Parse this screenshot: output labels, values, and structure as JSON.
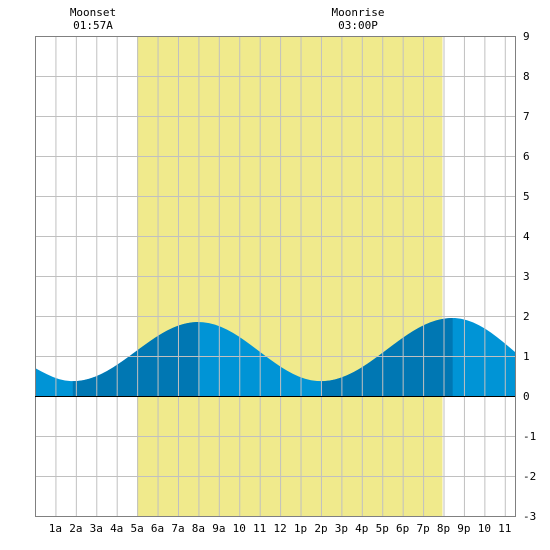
{
  "moon_events": [
    {
      "label": "Moonset",
      "time": "01:57A",
      "hour": 1.95
    },
    {
      "label": "Moonrise",
      "time": "03:00P",
      "hour": 15.0
    }
  ],
  "colors": {
    "background": "#ffffff",
    "daylight": "#f0ea8c",
    "grid": "#c0c0c0",
    "tide_light": "#0094d6",
    "tide_dark": "#0077b3",
    "zero_line": "#000000"
  },
  "chart_data": {
    "type": "area",
    "title": "",
    "xlabel": "",
    "ylabel": "",
    "xlim": [
      0,
      23.5
    ],
    "ylim": [
      -3,
      9
    ],
    "grid": true,
    "x_ticks": [
      {
        "hour": 1,
        "label": "1a"
      },
      {
        "hour": 2,
        "label": "2a"
      },
      {
        "hour": 3,
        "label": "3a"
      },
      {
        "hour": 4,
        "label": "4a"
      },
      {
        "hour": 5,
        "label": "5a"
      },
      {
        "hour": 6,
        "label": "6a"
      },
      {
        "hour": 7,
        "label": "7a"
      },
      {
        "hour": 8,
        "label": "8a"
      },
      {
        "hour": 9,
        "label": "9a"
      },
      {
        "hour": 10,
        "label": "10"
      },
      {
        "hour": 11,
        "label": "11"
      },
      {
        "hour": 12,
        "label": "12"
      },
      {
        "hour": 13,
        "label": "1p"
      },
      {
        "hour": 14,
        "label": "2p"
      },
      {
        "hour": 15,
        "label": "3p"
      },
      {
        "hour": 16,
        "label": "4p"
      },
      {
        "hour": 17,
        "label": "5p"
      },
      {
        "hour": 18,
        "label": "6p"
      },
      {
        "hour": 19,
        "label": "7p"
      },
      {
        "hour": 20,
        "label": "8p"
      },
      {
        "hour": 21,
        "label": "9p"
      },
      {
        "hour": 22,
        "label": "10"
      },
      {
        "hour": 23,
        "label": "11"
      }
    ],
    "y_ticks": [
      -3,
      -2,
      -1,
      0,
      1,
      2,
      3,
      4,
      5,
      6,
      7,
      8,
      9
    ],
    "daylight": {
      "start_hour": 5.0,
      "end_hour": 19.95
    },
    "tide_extremes": [
      {
        "hour": 1.85,
        "value": 0.37,
        "kind": "low"
      },
      {
        "hour": 8.0,
        "value": 1.85,
        "kind": "high"
      },
      {
        "hour": 14.0,
        "value": 0.37,
        "kind": "low"
      },
      {
        "hour": 20.45,
        "value": 1.95,
        "kind": "high"
      }
    ],
    "tide_start_value": 0.7,
    "tide_end_value": 1.1,
    "dark_bands": [
      {
        "from_hour": 1.85,
        "to_hour": 8.0
      },
      {
        "from_hour": 14.0,
        "to_hour": 20.45
      }
    ]
  }
}
